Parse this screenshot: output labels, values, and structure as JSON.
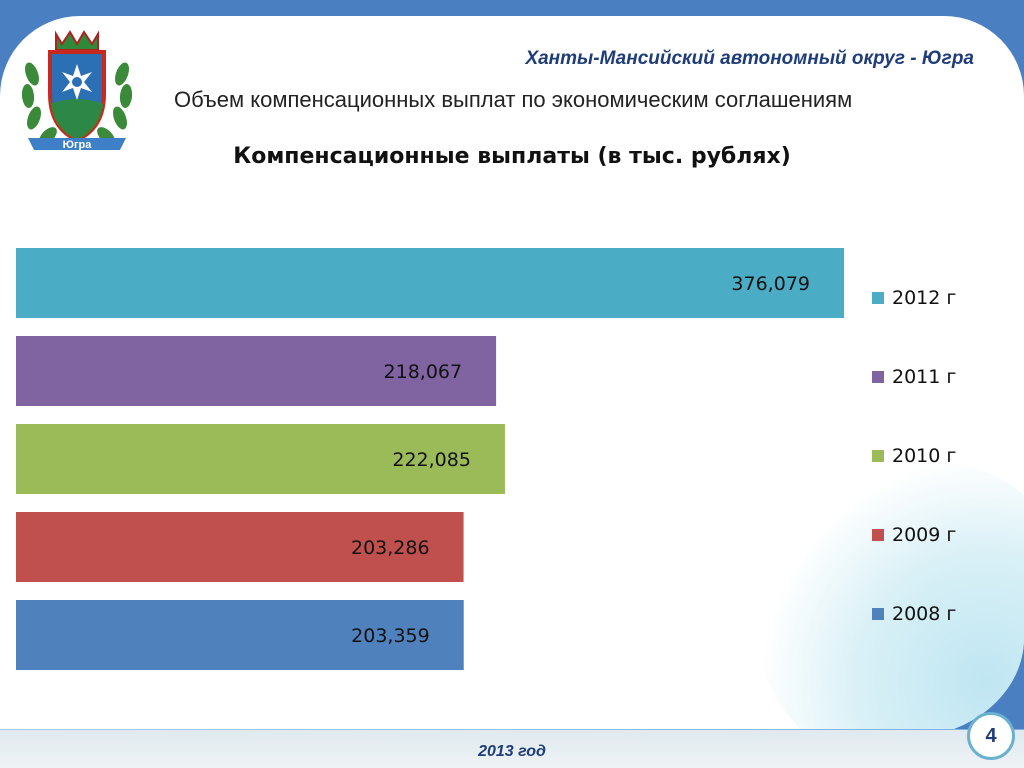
{
  "header": {
    "region_title": "Ханты-Мансийский автономный округ - Югра",
    "subtitle": "Объем компенсационных выплат по экономическим соглашениям",
    "emblem_ribbon_text": "Югра"
  },
  "chart_data": {
    "type": "bar",
    "orientation": "horizontal",
    "title": "Компенсационные выплаты (в тыс. рублях)",
    "categories": [
      "2012 г",
      "2011 г",
      "2010 г",
      "2009 г",
      "2008 г"
    ],
    "values": [
      376079,
      218067,
      222085,
      203286,
      203359
    ],
    "value_labels": [
      "376,079",
      "218,067",
      "222,085",
      "203,286",
      "203,359"
    ],
    "colors": [
      "#4bacc6",
      "#8064a2",
      "#9bbb59",
      "#c0504d",
      "#4f81bd"
    ],
    "legend": {
      "position": "right",
      "entries": [
        "2012 г",
        "2011 г",
        "2010 г",
        "2009 г",
        "2008 г"
      ]
    },
    "xlim": [
      0,
      376079
    ],
    "xlabel": "",
    "ylabel": "",
    "grid": false
  },
  "footer": {
    "year": "2013 год",
    "page_number": "4"
  },
  "colors": {
    "background": "#4a7fc1",
    "title_blue": "#1f3d7a"
  }
}
